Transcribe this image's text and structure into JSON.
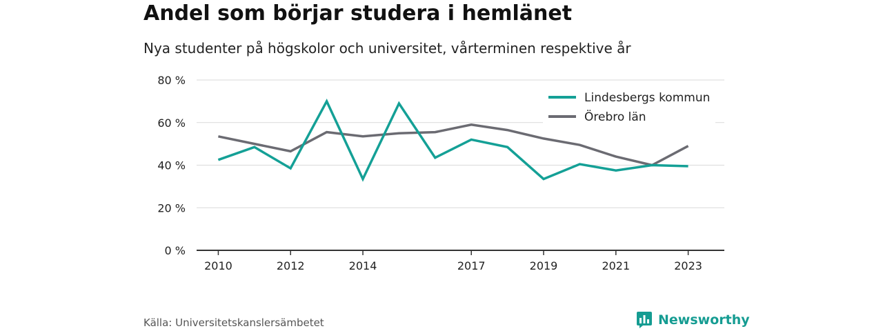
{
  "title": "Andel som börjar studera i hemlänet",
  "subtitle": "Nya studenter på högskolor och universitet, vårterminen respektive år",
  "source": "Källa: Universitetskanslersämbetet",
  "brand": {
    "name": "Newsworthy",
    "logo_icon": "bar-chart-speech-bubble-icon",
    "color": "#159c92"
  },
  "chart_data": {
    "type": "line",
    "title": "Andel som börjar studera i hemlänet",
    "subtitle": "Nya studenter på högskolor och universitet, vårterminen respektive år",
    "xlabel": "",
    "ylabel": "",
    "x": [
      2010,
      2011,
      2012,
      2013,
      2014,
      2015,
      2016,
      2017,
      2018,
      2019,
      2020,
      2021,
      2022,
      2023
    ],
    "x_ticks": [
      "2010",
      "2012",
      "2014",
      "2017",
      "2019",
      "2021",
      "2023"
    ],
    "y_ticks": [
      "0 %",
      "20 %",
      "40 %",
      "60 %",
      "80 %"
    ],
    "ylim": [
      0,
      80
    ],
    "grid": true,
    "legend_position": "top-right",
    "series": [
      {
        "name": "Lindesbergs kommun",
        "color": "#14a096",
        "values": [
          42.5,
          48.5,
          38.5,
          70,
          33.5,
          69,
          43.5,
          52,
          48.5,
          33.5,
          40.5,
          37.5,
          40,
          39.5
        ]
      },
      {
        "name": "Örebro län",
        "color": "#6b6b72",
        "values": [
          53.5,
          50,
          46.5,
          55.5,
          53.5,
          55,
          55.5,
          59,
          56.5,
          52.5,
          49.5,
          44,
          40,
          49
        ]
      }
    ]
  }
}
